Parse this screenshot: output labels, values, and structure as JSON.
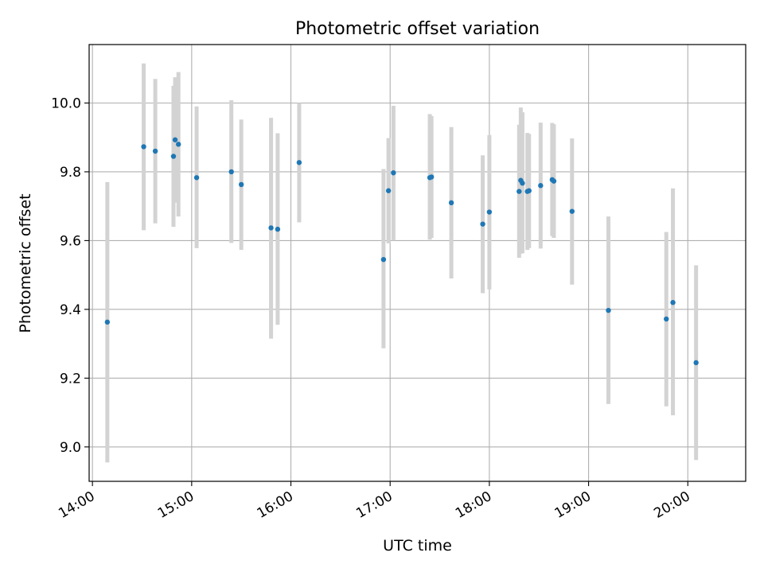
{
  "chart_data": {
    "type": "scatter",
    "title": "Photometric offset variation",
    "xlabel": "UTC time",
    "ylabel": "Photometric offset",
    "x_tick_labels": [
      "14:00",
      "15:00",
      "16:00",
      "17:00",
      "18:00",
      "19:00",
      "20:00"
    ],
    "y_tick_labels": [
      "9.0",
      "9.2",
      "9.4",
      "9.6",
      "9.8",
      "10.0"
    ],
    "y_ticks": [
      9.0,
      9.2,
      9.4,
      9.6,
      9.8,
      10.0
    ],
    "x_ticks": [
      "14:00",
      "15:00",
      "16:00",
      "17:00",
      "18:00",
      "19:00",
      "20:00"
    ],
    "xlim": [
      "13:58",
      "20:35"
    ],
    "ylim": [
      8.9,
      10.17
    ],
    "grid": true,
    "marker_color": "#1f77b4",
    "errorbar_color": "#d3d3d3",
    "points": [
      {
        "x": "14:09",
        "y": 9.363,
        "ylow": 8.955,
        "yhigh": 9.77
      },
      {
        "x": "14:31",
        "y": 9.873,
        "ylow": 9.63,
        "yhigh": 10.115
      },
      {
        "x": "14:38",
        "y": 9.86,
        "ylow": 9.65,
        "yhigh": 10.07
      },
      {
        "x": "14:49",
        "y": 9.845,
        "ylow": 9.64,
        "yhigh": 10.05
      },
      {
        "x": "14:50",
        "y": 9.893,
        "ylow": 9.71,
        "yhigh": 10.075
      },
      {
        "x": "14:52",
        "y": 9.88,
        "ylow": 9.67,
        "yhigh": 10.09
      },
      {
        "x": "15:03",
        "y": 9.783,
        "ylow": 9.578,
        "yhigh": 9.99
      },
      {
        "x": "15:24",
        "y": 9.8,
        "ylow": 9.593,
        "yhigh": 10.008
      },
      {
        "x": "15:30",
        "y": 9.763,
        "ylow": 9.573,
        "yhigh": 9.952
      },
      {
        "x": "15:48",
        "y": 9.637,
        "ylow": 9.315,
        "yhigh": 9.957
      },
      {
        "x": "15:52",
        "y": 9.633,
        "ylow": 9.355,
        "yhigh": 9.912
      },
      {
        "x": "16:05",
        "y": 9.827,
        "ylow": 9.653,
        "yhigh": 10.0
      },
      {
        "x": "16:56",
        "y": 9.545,
        "ylow": 9.287,
        "yhigh": 9.808
      },
      {
        "x": "16:59",
        "y": 9.745,
        "ylow": 9.592,
        "yhigh": 9.898
      },
      {
        "x": "17:02",
        "y": 9.797,
        "ylow": 9.6,
        "yhigh": 9.992
      },
      {
        "x": "17:24",
        "y": 9.783,
        "ylow": 9.603,
        "yhigh": 9.968
      },
      {
        "x": "17:25",
        "y": 9.785,
        "ylow": 9.608,
        "yhigh": 9.962
      },
      {
        "x": "17:37",
        "y": 9.71,
        "ylow": 9.49,
        "yhigh": 9.93
      },
      {
        "x": "17:56",
        "y": 9.648,
        "ylow": 9.447,
        "yhigh": 9.848
      },
      {
        "x": "18:00",
        "y": 9.683,
        "ylow": 9.458,
        "yhigh": 9.907
      },
      {
        "x": "18:18",
        "y": 9.743,
        "ylow": 9.55,
        "yhigh": 9.937
      },
      {
        "x": "18:19",
        "y": 9.775,
        "ylow": 9.562,
        "yhigh": 9.987
      },
      {
        "x": "18:20",
        "y": 9.767,
        "ylow": 9.563,
        "yhigh": 9.973
      },
      {
        "x": "18:23",
        "y": 9.743,
        "ylow": 9.573,
        "yhigh": 9.913
      },
      {
        "x": "18:24",
        "y": 9.745,
        "ylow": 9.578,
        "yhigh": 9.91
      },
      {
        "x": "18:31",
        "y": 9.76,
        "ylow": 9.577,
        "yhigh": 9.943
      },
      {
        "x": "18:38",
        "y": 9.777,
        "ylow": 9.613,
        "yhigh": 9.942
      },
      {
        "x": "18:39",
        "y": 9.773,
        "ylow": 9.608,
        "yhigh": 9.938
      },
      {
        "x": "18:50",
        "y": 9.685,
        "ylow": 9.472,
        "yhigh": 9.897
      },
      {
        "x": "19:12",
        "y": 9.397,
        "ylow": 9.125,
        "yhigh": 9.67
      },
      {
        "x": "19:47",
        "y": 9.372,
        "ylow": 9.118,
        "yhigh": 9.625
      },
      {
        "x": "19:51",
        "y": 9.42,
        "ylow": 9.092,
        "yhigh": 9.752
      },
      {
        "x": "20:05",
        "y": 9.245,
        "ylow": 8.962,
        "yhigh": 9.528
      }
    ]
  }
}
